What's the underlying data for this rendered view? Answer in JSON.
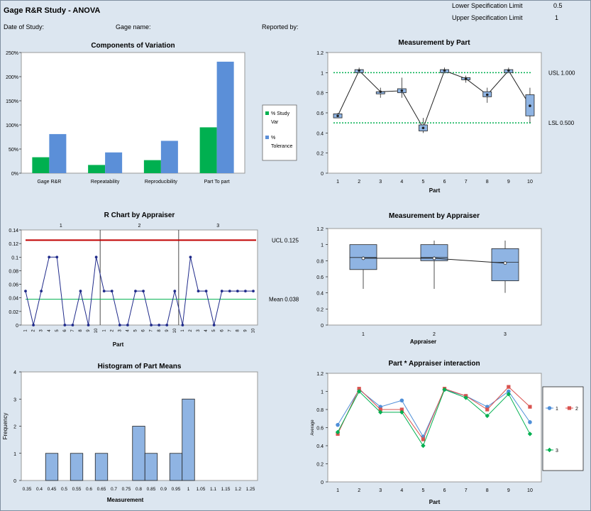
{
  "header": {
    "title": "Gage R&R Study - ANOVA",
    "date_label": "Date of Study:",
    "gage_label": "Gage name:",
    "reported_label": "Reported by:",
    "lsl_label": "Lower Specification Limit",
    "lsl_value": "0.5",
    "usl_label": "Upper Specification Limit",
    "usl_value": "1"
  },
  "chart_data": [
    {
      "id": "components",
      "type": "bar",
      "title": "Components of Variation",
      "categories": [
        "Gage R&R",
        "Repeatability",
        "Reproducibility",
        "Part To part"
      ],
      "series": [
        {
          "name": "% Study Var",
          "values": [
            33,
            17,
            27,
            95
          ],
          "color": "#00b050"
        },
        {
          "name": "% Tolerance",
          "values": [
            81,
            43,
            67,
            231
          ],
          "color": "#5b8fd8"
        }
      ],
      "ylim": [
        0,
        250
      ],
      "yticks": [
        "0%",
        "50%",
        "100%",
        "150%",
        "200%",
        "250%"
      ],
      "legend": "right"
    },
    {
      "id": "by_part",
      "type": "box",
      "title": "Measurement by  Part",
      "xlabel": "Part",
      "categories": [
        "1",
        "2",
        "3",
        "4",
        "5",
        "6",
        "7",
        "8",
        "9",
        "10"
      ],
      "means": [
        0.57,
        1.02,
        0.81,
        0.82,
        0.45,
        1.02,
        0.94,
        0.78,
        1.02,
        0.67
      ],
      "boxes": [
        [
          0.55,
          0.59
        ],
        [
          1.0,
          1.03
        ],
        [
          0.8,
          0.81
        ],
        [
          0.8,
          0.84
        ],
        [
          0.42,
          0.48
        ],
        [
          1.0,
          1.03
        ],
        [
          0.93,
          0.95
        ],
        [
          0.76,
          0.81
        ],
        [
          1.0,
          1.03
        ],
        [
          0.57,
          0.78
        ]
      ],
      "whiskers": [
        [
          0.55,
          0.6
        ],
        [
          1.0,
          1.05
        ],
        [
          0.75,
          0.85
        ],
        [
          0.75,
          0.95
        ],
        [
          0.4,
          0.55
        ],
        [
          1.0,
          1.05
        ],
        [
          0.9,
          0.97
        ],
        [
          0.7,
          0.85
        ],
        [
          1.0,
          1.05
        ],
        [
          0.5,
          0.85
        ]
      ],
      "usl": 1.0,
      "lsl": 0.5,
      "usl_label": "USL 1.000",
      "lsl_label": "LSL 0.500",
      "ylim": [
        0,
        1.2
      ],
      "yticks": [
        "0",
        "0.2",
        "0.4",
        "0.6",
        "0.8",
        "1",
        "1.2"
      ]
    },
    {
      "id": "r_chart",
      "type": "line",
      "title": "R Chart by  Appraiser",
      "xlabel": "Part",
      "groups": [
        "1",
        "2",
        "3"
      ],
      "x_ticks": [
        "1",
        "2",
        "3",
        "4",
        "5",
        "6",
        "7",
        "8",
        "9",
        "10"
      ],
      "values": [
        0.05,
        0,
        0.05,
        0.1,
        0.1,
        0,
        0,
        0.05,
        0,
        0.1,
        0.05,
        0.05,
        0,
        0,
        0.05,
        0.05,
        0,
        0,
        0,
        0.05,
        0,
        0.1,
        0.05,
        0.05,
        0,
        0.05,
        0.05,
        0.05,
        0.05,
        0.05
      ],
      "ucl": 0.125,
      "mean": 0.038,
      "ucl_label": "UCL 0.125",
      "mean_label": "Mean 0.038",
      "ylim": [
        0,
        0.14
      ],
      "yticks": [
        "0",
        "0.02",
        "0.04",
        "0.06",
        "0.08",
        "0.1",
        "0.12",
        "0.14"
      ]
    },
    {
      "id": "by_appraiser",
      "type": "box",
      "title": "Measurement by  Appraiser",
      "xlabel": "Appraiser",
      "categories": [
        "1",
        "2",
        "3"
      ],
      "means": [
        0.83,
        0.83,
        0.77
      ],
      "boxes": [
        [
          0.69,
          1.0
        ],
        [
          0.8,
          1.0
        ],
        [
          0.55,
          0.95
        ]
      ],
      "medians": [
        0.84,
        0.84,
        0.78
      ],
      "whiskers": [
        [
          0.45,
          1.0
        ],
        [
          0.45,
          1.05
        ],
        [
          0.4,
          1.05
        ]
      ],
      "ylim": [
        0,
        1.2
      ],
      "yticks": [
        "0",
        "0.2",
        "0.4",
        "0.6",
        "0.8",
        "1",
        "1.2"
      ]
    },
    {
      "id": "histogram",
      "type": "bar",
      "title": "Histogram of Part Means",
      "xlabel": "Measurement",
      "ylabel": "Frequency",
      "x_ticks": [
        "0.35",
        "0.4",
        "0.45",
        "0.5",
        "0.55",
        "0.6",
        "0.65",
        "0.7",
        "0.75",
        "0.8",
        "0.85",
        "0.9",
        "0.95",
        "1",
        "1.05",
        "1.1",
        "1.15",
        "1.2",
        "1.25"
      ],
      "bins": [
        [
          0.425,
          0.475,
          1
        ],
        [
          0.525,
          0.575,
          1
        ],
        [
          0.625,
          0.675,
          1
        ],
        [
          0.775,
          0.825,
          2
        ],
        [
          0.825,
          0.875,
          1
        ],
        [
          0.925,
          0.975,
          1
        ],
        [
          0.975,
          1.025,
          3
        ]
      ],
      "ylim": [
        0,
        4
      ],
      "yticks": [
        "0",
        "1",
        "2",
        "3",
        "4"
      ]
    },
    {
      "id": "interaction",
      "type": "line",
      "title": "Part * Appraiser interaction",
      "xlabel": "Part",
      "ylabel": "Average",
      "categories": [
        "1",
        "2",
        "3",
        "4",
        "5",
        "6",
        "7",
        "8",
        "9",
        "10"
      ],
      "series": [
        {
          "name": "1",
          "color": "#4f8fd8",
          "marker": "circle",
          "values": [
            0.63,
            1.02,
            0.83,
            0.9,
            0.5,
            1.02,
            0.95,
            0.83,
            1.0,
            0.66
          ]
        },
        {
          "name": "2",
          "color": "#d9534f",
          "marker": "square",
          "values": [
            0.53,
            1.03,
            0.8,
            0.8,
            0.47,
            1.03,
            0.95,
            0.8,
            1.05,
            0.83
          ]
        },
        {
          "name": "3",
          "color": "#00b050",
          "marker": "diamond",
          "values": [
            0.55,
            1.0,
            0.77,
            0.77,
            0.4,
            1.02,
            0.93,
            0.73,
            0.97,
            0.53
          ]
        }
      ],
      "ylim": [
        0,
        1.2
      ],
      "yticks": [
        "0",
        "0.2",
        "0.4",
        "0.6",
        "0.8",
        "1",
        "1.2"
      ],
      "legend": "right"
    }
  ]
}
